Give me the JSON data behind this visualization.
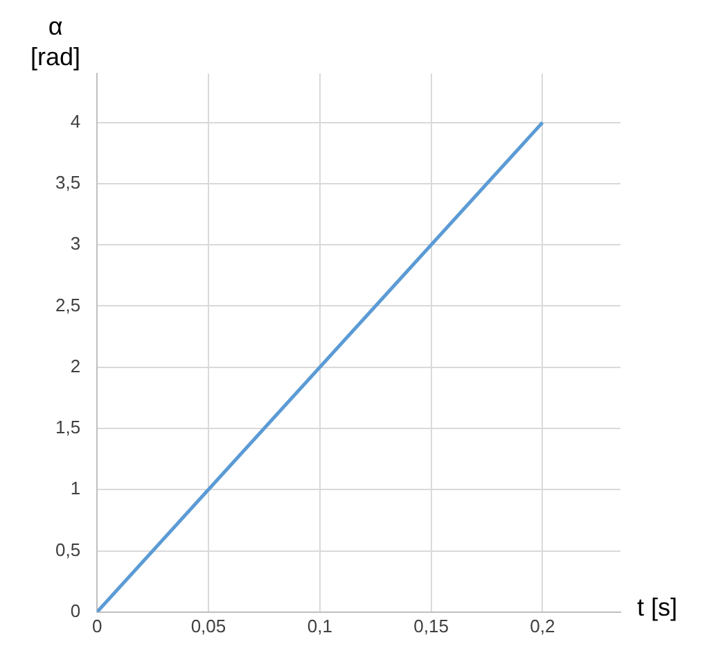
{
  "chart_data": {
    "type": "line",
    "xlabel": "t [s]",
    "ylabel": "α\n[rad]",
    "x": [
      0,
      0.2
    ],
    "series": [
      {
        "color": "#5b9bd5",
        "values": [
          0,
          4
        ]
      }
    ],
    "xlim": [
      0,
      0.235
    ],
    "ylim": [
      0,
      4.4
    ],
    "xticks": [
      0,
      {
        "value": 0.05,
        "label": "0,05"
      },
      {
        "value": 0.1,
        "label": "0,1"
      },
      {
        "value": 0.15,
        "label": "0,15"
      },
      {
        "value": 0.2,
        "label": "0,2"
      }
    ],
    "yticks": [
      0,
      {
        "value": 0.5,
        "label": "0,5"
      },
      1,
      {
        "value": 1.5,
        "label": "1,5"
      },
      2,
      {
        "value": 2.5,
        "label": "2,5"
      },
      3,
      {
        "value": 3.5,
        "label": "3,5"
      },
      4
    ],
    "grid": true,
    "legend": false,
    "marker": "none",
    "line_style": "solid"
  }
}
